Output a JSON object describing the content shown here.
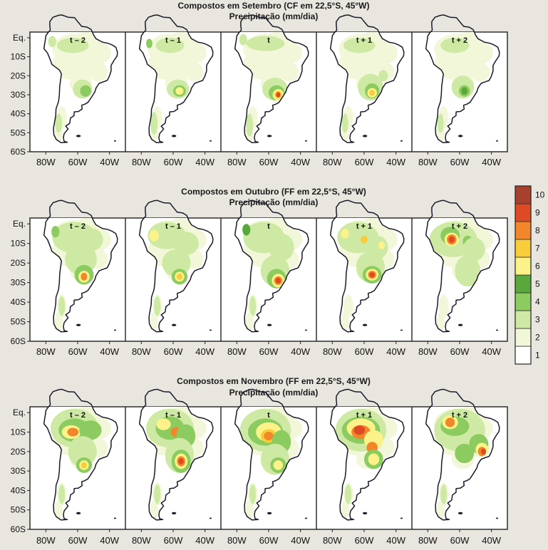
{
  "chart_data": [
    {
      "type": "heatmap",
      "title": "Compostos em Setembro (CF em 22,5°S, 45°W)",
      "subtitle": "Precipitação (mm/dia)",
      "panels": [
        "t – 2",
        "t – 1",
        "t",
        "t + 1",
        "t + 2"
      ],
      "xticks": [
        "80W",
        "60W",
        "40W"
      ],
      "yticks": [
        "Eq.",
        "10S",
        "20S",
        "30S",
        "40S",
        "50S",
        "60S"
      ],
      "xlim": [
        -90,
        -30
      ],
      "ylim": [
        -60,
        3
      ],
      "max_intensity": [
        4,
        6,
        9,
        7,
        5
      ],
      "peak_location": [
        [
          -55,
          -29
        ],
        [
          -56,
          -28
        ],
        [
          -54,
          -30
        ],
        [
          -55,
          -29
        ],
        [
          -57,
          -28
        ]
      ]
    },
    {
      "type": "heatmap",
      "title": "Compostos em Outubro (FF em 22,5°S, 45°W)",
      "subtitle": "Precipitação (mm/dia)",
      "panels": [
        "t – 2",
        "t – 1",
        "t",
        "t + 1",
        "t + 2"
      ],
      "xticks": [
        "80W",
        "60W",
        "40W"
      ],
      "yticks": [
        "Eq.",
        "10S",
        "20S",
        "30S",
        "40S",
        "50S",
        "60S"
      ],
      "xlim": [
        -90,
        -30
      ],
      "ylim": [
        -60,
        3
      ],
      "max_intensity": [
        8,
        7,
        9,
        9,
        9
      ],
      "peak_location": [
        [
          -56,
          -27
        ],
        [
          -56,
          -27
        ],
        [
          -54,
          -29
        ],
        [
          -55,
          -26
        ],
        [
          -65,
          -8
        ]
      ]
    },
    {
      "type": "heatmap",
      "title": "Compostos em Novembro (FF em 22,5°S, 45°W)",
      "subtitle": "Precipitação (mm/dia)",
      "panels": [
        "t – 2",
        "t – 1",
        "t",
        "t + 1",
        "t + 2"
      ],
      "xticks": [
        "80W",
        "60W",
        "40W"
      ],
      "yticks": [
        "Eq.",
        "10S",
        "20S",
        "30S",
        "40S",
        "50S",
        "60S"
      ],
      "xlim": [
        -90,
        -30
      ],
      "ylim": [
        -60,
        3
      ],
      "max_intensity": [
        8,
        9,
        8,
        9,
        9
      ],
      "peak_location": [
        [
          -63,
          -10
        ],
        [
          -55,
          -25
        ],
        [
          -60,
          -12
        ],
        [
          -62,
          -10
        ],
        [
          -45,
          -20
        ]
      ]
    }
  ],
  "legend": {
    "levels": [
      "1",
      "2",
      "3",
      "4",
      "5",
      "6",
      "7",
      "8",
      "9",
      "10"
    ],
    "colors": [
      "#ffffff",
      "#f3f7d9",
      "#cde9a3",
      "#8ccb5f",
      "#5aa83b",
      "#fbf38a",
      "#f8cc3b",
      "#f2862a",
      "#dd4a24",
      "#a8402f"
    ]
  }
}
